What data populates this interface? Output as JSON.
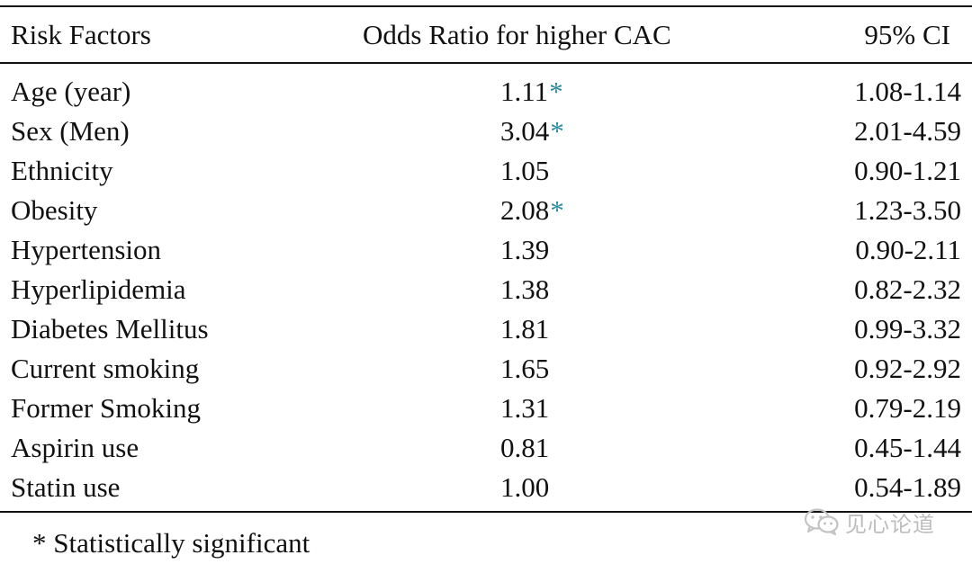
{
  "table": {
    "headers": {
      "risk_factors": "Risk Factors",
      "odds_ratio": "Odds Ratio for higher CAC",
      "ci": "95% CI"
    },
    "rows": [
      {
        "factor": "Age (year)",
        "odds_ratio": "1.11",
        "significant": true,
        "ci": "1.08-1.14"
      },
      {
        "factor": "Sex (Men)",
        "odds_ratio": "3.04",
        "significant": true,
        "ci": "2.01-4.59"
      },
      {
        "factor": "Ethnicity",
        "odds_ratio": "1.05",
        "significant": false,
        "ci": "0.90-1.21"
      },
      {
        "factor": "Obesity",
        "odds_ratio": "2.08",
        "significant": true,
        "ci": "1.23-3.50"
      },
      {
        "factor": "Hypertension",
        "odds_ratio": "1.39",
        "significant": false,
        "ci": "0.90-2.11"
      },
      {
        "factor": "Hyperlipidemia",
        "odds_ratio": "1.38",
        "significant": false,
        "ci": "0.82-2.32"
      },
      {
        "factor": "Diabetes Mellitus",
        "odds_ratio": "1.81",
        "significant": false,
        "ci": "0.99-3.32"
      },
      {
        "factor": "Current smoking",
        "odds_ratio": "1.65",
        "significant": false,
        "ci": "0.92-2.92"
      },
      {
        "factor": "Former Smoking",
        "odds_ratio": "1.31",
        "significant": false,
        "ci": "0.79-2.19"
      },
      {
        "factor": "Aspirin use",
        "odds_ratio": "0.81",
        "significant": false,
        "ci": "0.45-1.44"
      },
      {
        "factor": "Statin use",
        "odds_ratio": "1.00",
        "significant": false,
        "ci": "0.54-1.89"
      }
    ],
    "significance_marker": "*",
    "footnote": "* Statistically significant"
  },
  "watermark": {
    "text": "见心论道",
    "icon": "wechat-icon"
  },
  "colors": {
    "text": "#111111",
    "significance_star": "#2a8aa0",
    "watermark": "#bdbdbd"
  }
}
